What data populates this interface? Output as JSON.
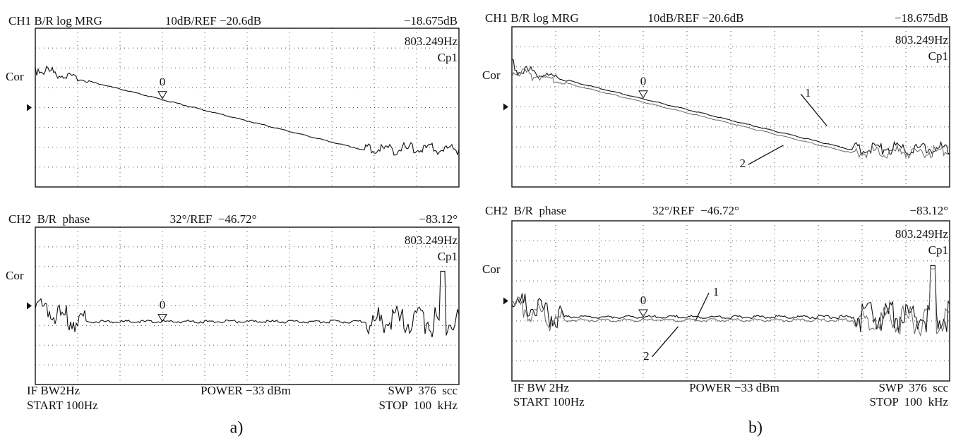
{
  "panels": [
    {
      "caption": "a)",
      "screens": [
        {
          "channel": "CH1 B/R log MRG",
          "scale": "10dB/REF −20.6dB",
          "readout": "−18.675dB",
          "marker_freq": "803.249Hz",
          "marker_name": "Cp1",
          "label": "Cor",
          "marker_index": "0",
          "annotations": []
        },
        {
          "channel": "CH2  B/R  phase",
          "scale": "32°/REF  −46.72°",
          "readout": "−83.12°",
          "marker_freq": "803.249Hz",
          "marker_name": "Cp1",
          "label": "Cor",
          "marker_index": "0",
          "annotations": []
        }
      ],
      "footer": {
        "if_bw": "IF BW2Hz",
        "start": "START 100Hz",
        "power": "POWER −33 dBm",
        "swp": "SWP  376  scc",
        "stop": "STOP  100  kHz"
      }
    },
    {
      "caption": "b)",
      "screens": [
        {
          "channel": "CH1 B/R log MRG",
          "scale": "10dB/REF −20.6dB",
          "readout": "−18.675dB",
          "marker_freq": "803.249Hz",
          "marker_name": "Cp1",
          "label": "Cor",
          "marker_index": "0",
          "annotations": [
            "1",
            "2"
          ]
        },
        {
          "channel": "CH2  B/R  phase",
          "scale": "32°/REF  −46.72°",
          "readout": "−83.12°",
          "marker_freq": "803.249Hz",
          "marker_name": "Cp1",
          "label": "Cor",
          "marker_index": "0",
          "annotations": [
            "1",
            "2"
          ]
        }
      ],
      "footer": {
        "if_bw": "IF BW 2Hz",
        "start": "START 100Hz",
        "power": "POWER −33 dBm",
        "swp": "SWP  376  scc",
        "stop": "STOP  100  kHz"
      }
    }
  ]
}
